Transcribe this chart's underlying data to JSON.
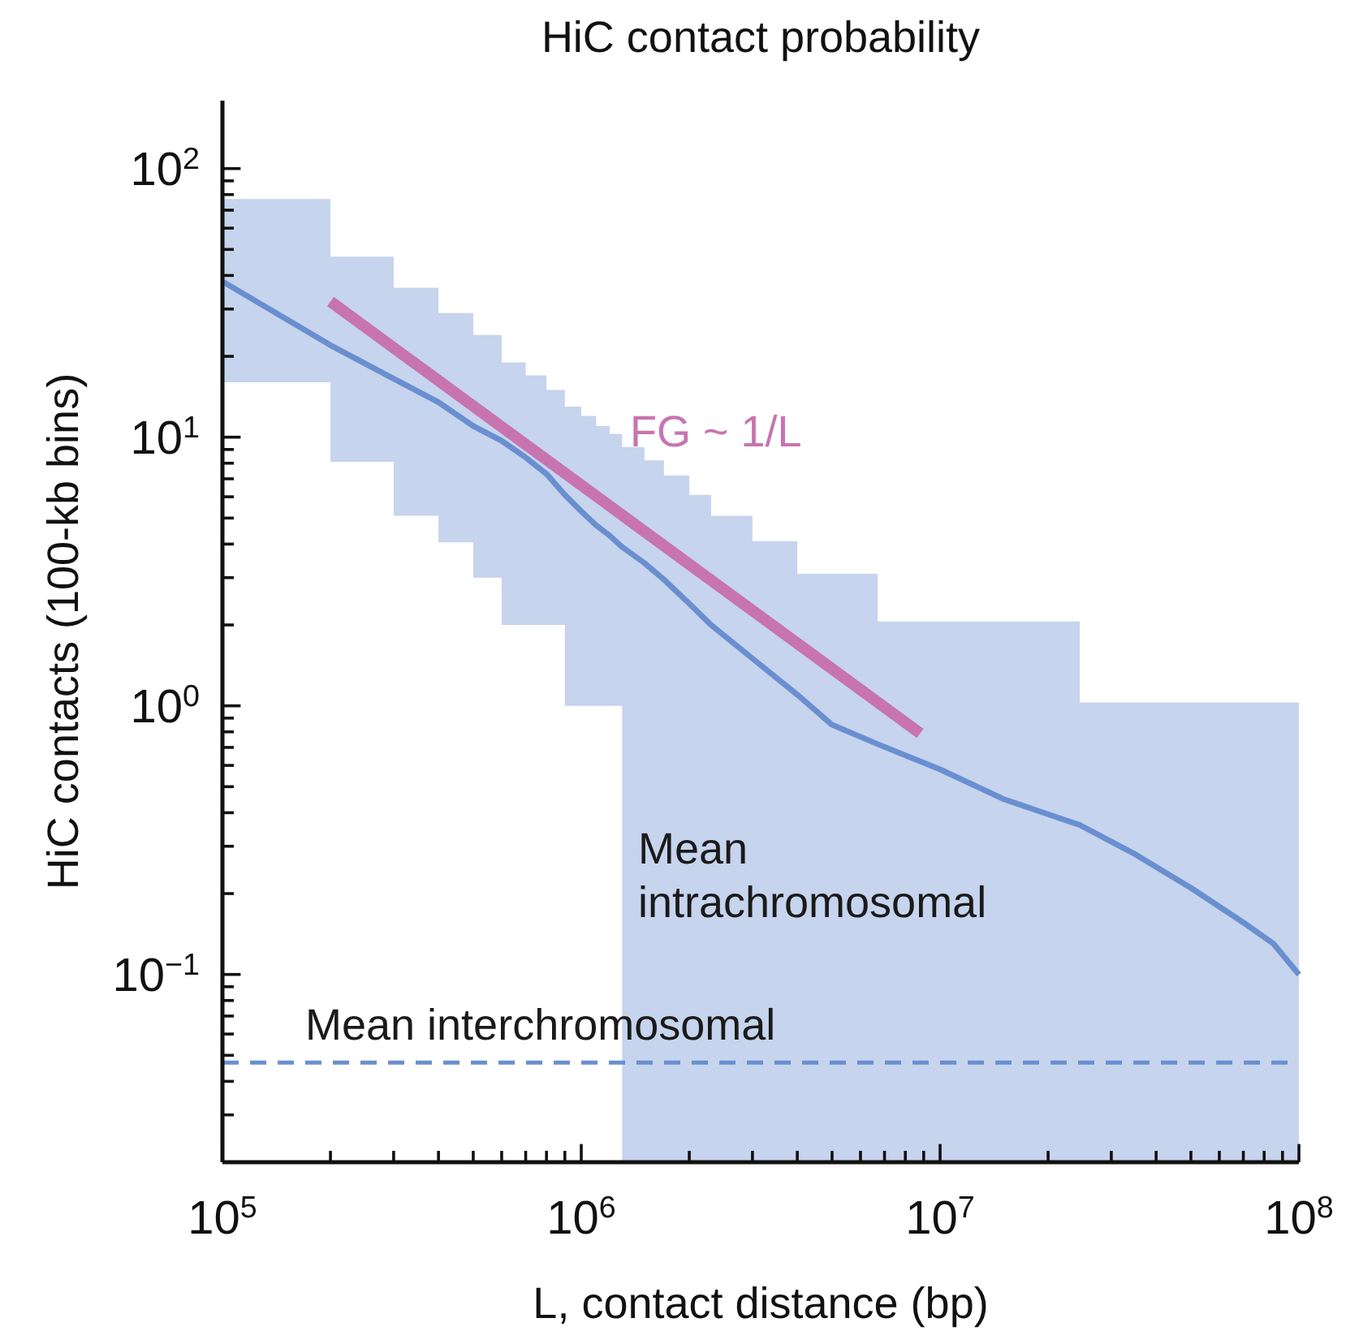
{
  "chart_data": {
    "type": "line",
    "title": "HiC contact probability",
    "xlabel": "L, contact distance (bp)",
    "ylabel": "HiC contacts (100-kb bins)",
    "log": "xy",
    "grid": false,
    "xlim": [
      100000,
      100000000
    ],
    "ylim": [
      0.02,
      179
    ],
    "xticks": [
      {
        "value": 100000,
        "label": "10$^{5}$"
      },
      {
        "value": 200000,
        "label": null
      },
      {
        "value": 300000,
        "label": null
      },
      {
        "value": 400000,
        "label": null
      },
      {
        "value": 500000,
        "label": null
      },
      {
        "value": 600000,
        "label": null
      },
      {
        "value": 700000,
        "label": null
      },
      {
        "value": 800000,
        "label": null
      },
      {
        "value": 900000,
        "label": null
      },
      {
        "value": 1000000,
        "label": "10$^{6}$"
      },
      {
        "value": 2000000,
        "label": null
      },
      {
        "value": 3000000,
        "label": null
      },
      {
        "value": 4000000,
        "label": null
      },
      {
        "value": 5000000,
        "label": null
      },
      {
        "value": 6000000,
        "label": null
      },
      {
        "value": 7000000,
        "label": null
      },
      {
        "value": 8000000,
        "label": null
      },
      {
        "value": 9000000,
        "label": null
      },
      {
        "value": 10000000,
        "label": "10$^{7}$"
      },
      {
        "value": 20000000,
        "label": null
      },
      {
        "value": 30000000,
        "label": null
      },
      {
        "value": 40000000,
        "label": null
      },
      {
        "value": 50000000,
        "label": null
      },
      {
        "value": 60000000,
        "label": null
      },
      {
        "value": 70000000,
        "label": null
      },
      {
        "value": 80000000,
        "label": null
      },
      {
        "value": 90000000,
        "label": null
      },
      {
        "value": 100000000,
        "label": "10$^{8}$"
      }
    ],
    "yticks": [
      {
        "value": 0.02,
        "label": null
      },
      {
        "value": 0.03,
        "label": null
      },
      {
        "value": 0.04,
        "label": null
      },
      {
        "value": 0.05,
        "label": null
      },
      {
        "value": 0.06,
        "label": null
      },
      {
        "value": 0.07,
        "label": null
      },
      {
        "value": 0.08,
        "label": null
      },
      {
        "value": 0.09,
        "label": null
      },
      {
        "value": 0.1,
        "label": "10$^{−1}$"
      },
      {
        "value": 0.2,
        "label": null
      },
      {
        "value": 0.3,
        "label": null
      },
      {
        "value": 0.4,
        "label": null
      },
      {
        "value": 0.5,
        "label": null
      },
      {
        "value": 0.6,
        "label": null
      },
      {
        "value": 0.7,
        "label": null
      },
      {
        "value": 0.8,
        "label": null
      },
      {
        "value": 0.9,
        "label": null
      },
      {
        "value": 1,
        "label": "10$^{0}$"
      },
      {
        "value": 2,
        "label": null
      },
      {
        "value": 3,
        "label": null
      },
      {
        "value": 4,
        "label": null
      },
      {
        "value": 5,
        "label": null
      },
      {
        "value": 6,
        "label": null
      },
      {
        "value": 7,
        "label": null
      },
      {
        "value": 8,
        "label": null
      },
      {
        "value": 9,
        "label": null
      },
      {
        "value": 10,
        "label": "10$^{1}$"
      },
      {
        "value": 20,
        "label": null
      },
      {
        "value": 30,
        "label": null
      },
      {
        "value": 40,
        "label": null
      },
      {
        "value": 50,
        "label": null
      },
      {
        "value": 60,
        "label": null
      },
      {
        "value": 70,
        "label": null
      },
      {
        "value": 80,
        "label": null
      },
      {
        "value": 90,
        "label": null
      },
      {
        "value": 100,
        "label": "10$^{2}$"
      }
    ],
    "series": [
      {
        "name": "Mean intrachromosomal",
        "color": "#6a8fd0",
        "marker": "none",
        "line_style": "solid",
        "x": [
          100000,
          200000,
          300000,
          400000,
          500000,
          600000,
          700000,
          800000,
          900000,
          1000000,
          1100000,
          1200000,
          1300000,
          1500000,
          1700000,
          2000000,
          2300000,
          3000000,
          4000000,
          5000000,
          6700000,
          10000000,
          15000000,
          24500000,
          35000000,
          50000000,
          70000000,
          85000000,
          100000000
        ],
        "values": [
          38,
          22,
          16.5,
          13.5,
          11,
          9.7,
          8.4,
          7.3,
          6.1,
          5.3,
          4.7,
          4.3,
          3.9,
          3.4,
          2.95,
          2.4,
          2.0,
          1.5,
          1.1,
          0.85,
          0.72,
          0.58,
          0.45,
          0.36,
          0.28,
          0.21,
          0.156,
          0.13,
          0.1
        ],
        "lower": [
          16,
          8.1,
          5.1,
          4.06,
          3.0,
          2,
          2,
          2,
          1,
          1,
          1,
          1,
          0.02,
          0.02,
          0.02,
          0.02,
          0.02,
          0.02,
          0.02,
          0.02,
          0.02,
          0.02,
          0.02,
          0.02,
          0.02,
          0.02,
          0.02,
          0.02,
          0.02
        ],
        "upper": [
          77,
          47,
          36,
          29,
          24,
          19,
          17,
          15,
          13,
          12,
          11,
          10.3,
          9.2,
          8.2,
          7.2,
          6.1,
          5.1,
          4.1,
          3.1,
          3.1,
          2.06,
          2.06,
          2.06,
          1.03,
          1.03,
          1.03,
          1.03,
          1.03,
          1.03
        ]
      },
      {
        "name": "FG ~ 1/L",
        "color": "#c774b1",
        "marker": "none",
        "line_style": "solid",
        "x": [
          200000,
          8800000
        ],
        "values": [
          32,
          0.79
        ]
      }
    ],
    "ref_lines": [
      {
        "axis": "y",
        "value": 0.047,
        "label": "Mean interchromosomal",
        "color": "#6a8fd0",
        "line_style": "dashed"
      }
    ]
  }
}
